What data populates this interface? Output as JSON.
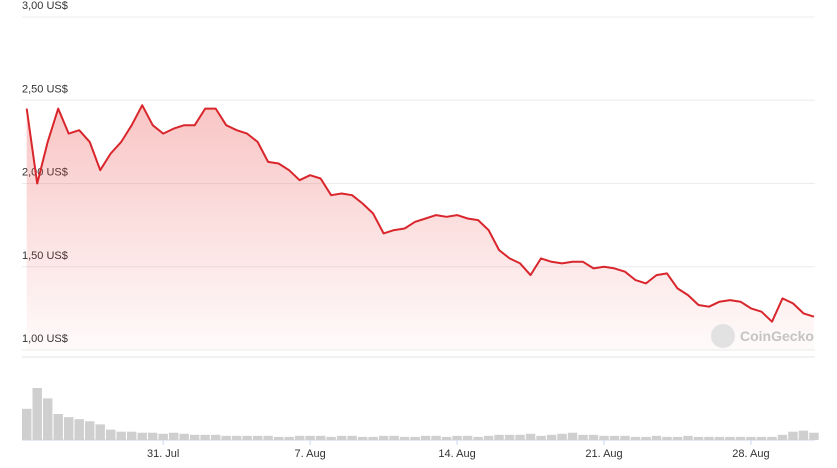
{
  "chart_data": {
    "type": "line",
    "categories": [
      null,
      null,
      null,
      null,
      null,
      null,
      null,
      null,
      null,
      null,
      null,
      null,
      null,
      "31. Jul",
      null,
      null,
      null,
      null,
      null,
      null,
      null,
      null,
      null,
      null,
      null,
      null,
      null,
      "7. Aug",
      null,
      null,
      null,
      null,
      null,
      null,
      null,
      null,
      null,
      null,
      null,
      null,
      null,
      "14. Aug",
      null,
      null,
      null,
      null,
      null,
      null,
      null,
      null,
      null,
      null,
      null,
      null,
      null,
      "21. Aug",
      null,
      null,
      null,
      null,
      null,
      null,
      null,
      null,
      null,
      null,
      null,
      null,
      null,
      "28. Aug",
      null,
      null,
      null,
      null,
      null,
      null
    ],
    "series": [
      {
        "color": "#d9262c",
        "values": [
          2.45,
          2.0,
          2.25,
          2.45,
          2.3,
          2.32,
          2.25,
          2.08,
          2.18,
          2.25,
          2.35,
          2.47,
          2.35,
          2.3,
          2.33,
          2.35,
          2.35,
          2.45,
          2.45,
          2.35,
          2.32,
          2.3,
          2.25,
          2.13,
          2.12,
          2.08,
          2.02,
          2.05,
          2.03,
          1.93,
          1.94,
          1.93,
          1.88,
          1.82,
          1.7,
          1.72,
          1.73,
          1.77,
          1.79,
          1.81,
          1.8,
          1.81,
          1.79,
          1.78,
          1.72,
          1.6,
          1.55,
          1.52,
          1.45,
          1.55,
          1.53,
          1.52,
          1.53,
          1.53,
          1.49,
          1.5,
          1.49,
          1.47,
          1.42,
          1.4,
          1.45,
          1.46,
          1.37,
          1.33,
          1.27,
          1.26,
          1.29,
          1.3,
          1.29,
          1.25,
          1.23,
          1.17,
          1.31,
          1.28,
          1.22,
          1.2
        ]
      }
    ],
    "volume": {
      "color": "#cfcfcf",
      "values": [
        30,
        50,
        40,
        25,
        22,
        20,
        18,
        15,
        10,
        8,
        8,
        7,
        7,
        6,
        7,
        6,
        5,
        5,
        5,
        4,
        4,
        4,
        4,
        4,
        3,
        3,
        4,
        4,
        4,
        3,
        4,
        4,
        3,
        3,
        4,
        4,
        3,
        3,
        4,
        4,
        3,
        4,
        4,
        3,
        4,
        5,
        5,
        5,
        6,
        4,
        5,
        6,
        7,
        5,
        5,
        4,
        4,
        4,
        3,
        3,
        4,
        3,
        3,
        4,
        3,
        3,
        3,
        3,
        3,
        3,
        3,
        3,
        5,
        8,
        9,
        7
      ]
    },
    "ylim": [
      1,
      3
    ],
    "yticks": [
      {
        "value": 1,
        "label": "1,00 US$"
      },
      {
        "value": 1.5,
        "label": "1,50 US$"
      },
      {
        "value": 2,
        "label": "2,00 US$"
      },
      {
        "value": 2.5,
        "label": "2,50 US$"
      },
      {
        "value": 3,
        "label": "3,00 US$"
      }
    ],
    "grid": true,
    "watermark": "CoinGecko"
  }
}
